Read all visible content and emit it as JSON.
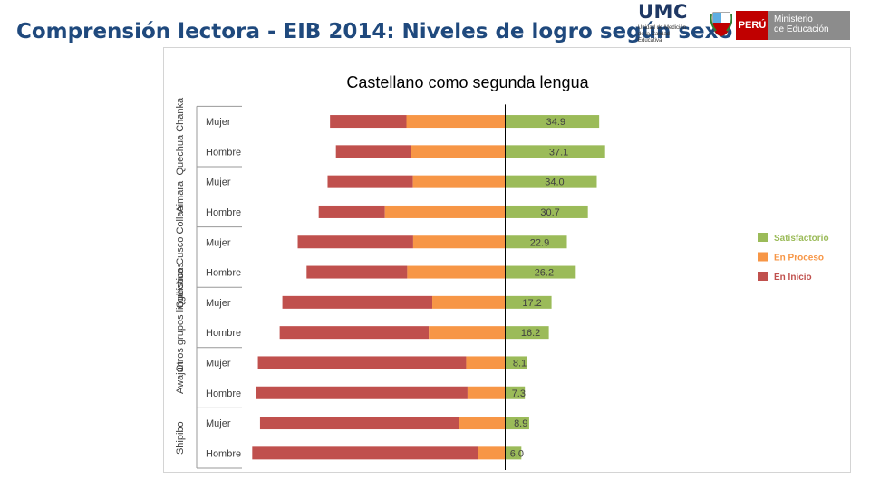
{
  "header": {
    "title": "Comprensión lectora - EIB 2014: Niveles de logro según sexo",
    "logo_name": "UMC",
    "logo_subtitle": [
      "Unidad de Medición",
      "de la Calidad Educativa"
    ],
    "peru_label": "PERÚ",
    "ministry_label": [
      "Ministerio",
      "de Educación"
    ]
  },
  "chart_data": {
    "type": "bar",
    "orientation": "horizontal",
    "stacking": "diverging",
    "title": "Castellano como segunda lengua",
    "xlabel": "",
    "ylabel": "",
    "grid": false,
    "legend_position": "right",
    "groups": [
      {
        "name": "Quechua Chanka",
        "categories": [
          "Mujer",
          "Hombre"
        ]
      },
      {
        "name": "Aimara",
        "categories": [
          "Mujer",
          "Hombre"
        ]
      },
      {
        "name": "Quechua Cusco Collao",
        "categories": [
          "Mujer",
          "Hombre"
        ]
      },
      {
        "name": "Otros grupos lingüísticos",
        "categories": [
          "Mujer",
          "Hombre"
        ]
      },
      {
        "name": "Awajún",
        "categories": [
          "Mujer",
          "Hombre"
        ]
      },
      {
        "name": "Shipibo",
        "categories": [
          "Mujer",
          "Hombre"
        ]
      }
    ],
    "categories": [
      "Mujer",
      "Hombre",
      "Mujer",
      "Hombre",
      "Mujer",
      "Hombre",
      "Mujer",
      "Hombre",
      "Mujer",
      "Hombre",
      "Mujer",
      "Hombre"
    ],
    "series": [
      {
        "name": "En Inicio",
        "color": "#c0504d",
        "side": "left",
        "values": [
          28.4,
          28.0,
          31.7,
          24.6,
          42.9,
          37.4,
          55.7,
          55.4,
          77.4,
          78.7,
          74.1,
          84.0
        ]
      },
      {
        "name": "En Proceso",
        "color": "#f79646",
        "side": "left",
        "values": [
          36.7,
          34.9,
          34.3,
          44.7,
          34.2,
          36.4,
          27.1,
          28.4,
          14.5,
          14.0,
          17.0,
          10.0
        ]
      },
      {
        "name": "Satisfactorio",
        "color": "#9bbb59",
        "side": "right",
        "values": [
          34.9,
          37.1,
          34.0,
          30.7,
          22.9,
          26.2,
          17.2,
          16.2,
          8.1,
          7.3,
          8.9,
          6.0
        ]
      }
    ],
    "data_labels": [
      "34.9",
      "37.1",
      "34.0",
      "30.7",
      "22.9",
      "26.2",
      "17.2",
      "16.2",
      "8.1",
      "7.3",
      "8.9",
      "6.0"
    ],
    "legend": [
      {
        "label": "Satisfactorio",
        "color": "#9bbb59"
      },
      {
        "label": "En Proceso",
        "color": "#f79646"
      },
      {
        "label": "En Inicio",
        "color": "#c0504d"
      }
    ]
  }
}
